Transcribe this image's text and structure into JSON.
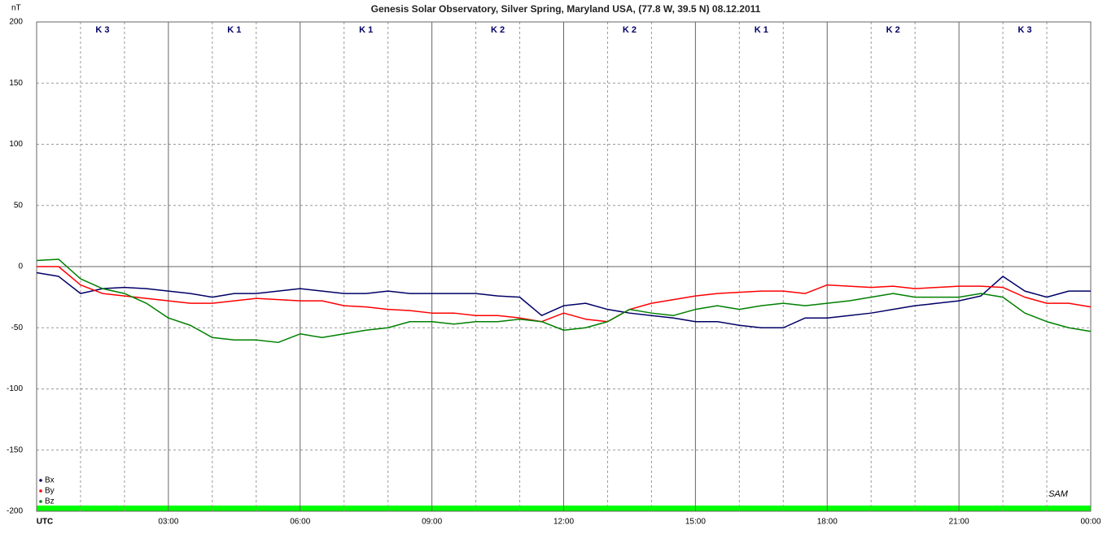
{
  "chart_data": {
    "type": "line",
    "title": "Genesis Solar Observatory, Silver Spring, Maryland USA, (77.8 W, 39.5 N)  08.12.2011",
    "y_label": "nT",
    "k_index": [
      "K 3",
      "K 1",
      "K 1",
      "K 2",
      "K 2",
      "K 1",
      "K 2",
      "K 3"
    ],
    "logo": "SAM",
    "x": [
      0,
      0.5,
      1,
      1.5,
      2,
      2.5,
      3,
      3.5,
      4,
      4.5,
      5,
      5.5,
      6,
      6.5,
      7,
      7.5,
      8,
      8.5,
      9,
      9.5,
      10,
      10.5,
      11,
      11.5,
      12,
      12.5,
      13,
      13.5,
      14,
      14.5,
      15,
      15.5,
      16,
      16.5,
      17,
      17.5,
      18,
      18.5,
      19,
      19.5,
      20,
      20.5,
      21,
      21.5,
      22,
      22.5,
      23,
      23.5,
      24
    ],
    "series": [
      {
        "name": "Bx",
        "color": "#000066",
        "values": [
          -5,
          -8,
          -22,
          -18,
          -17,
          -18,
          -20,
          -22,
          -25,
          -22,
          -22,
          -20,
          -18,
          -20,
          -22,
          -22,
          -20,
          -22,
          -22,
          -22,
          -22,
          -24,
          -25,
          -40,
          -32,
          -30,
          -35,
          -38,
          -40,
          -42,
          -45,
          -45,
          -48,
          -50,
          -50,
          -42,
          -42,
          -40,
          -38,
          -35,
          -32,
          -30,
          -28,
          -24,
          -8,
          -20,
          -25,
          -20,
          -20
        ]
      },
      {
        "name": "By",
        "color": "#ff0000",
        "values": [
          0,
          0,
          -15,
          -22,
          -24,
          -26,
          -28,
          -30,
          -30,
          -28,
          -26,
          -27,
          -28,
          -28,
          -32,
          -33,
          -35,
          -36,
          -38,
          -38,
          -40,
          -40,
          -42,
          -45,
          -38,
          -43,
          -45,
          -35,
          -30,
          -27,
          -24,
          -22,
          -21,
          -20,
          -20,
          -22,
          -15,
          -16,
          -17,
          -16,
          -18,
          -17,
          -16,
          -16,
          -17,
          -25,
          -30,
          -30,
          -33
        ]
      },
      {
        "name": "Bz",
        "color": "#008000",
        "values": [
          5,
          6,
          -10,
          -18,
          -22,
          -30,
          -42,
          -48,
          -58,
          -60,
          -60,
          -62,
          -55,
          -58,
          -55,
          -52,
          -50,
          -45,
          -45,
          -47,
          -45,
          -45,
          -43,
          -45,
          -52,
          -50,
          -45,
          -35,
          -38,
          -40,
          -35,
          -32,
          -35,
          -32,
          -30,
          -32,
          -30,
          -28,
          -25,
          -22,
          -25,
          -25,
          -25,
          -22,
          -25,
          -38,
          -45,
          -50,
          -53
        ]
      }
    ],
    "xlim": [
      0,
      24
    ],
    "xticks": [
      {
        "value": 0,
        "label": "UTC"
      },
      {
        "value": 3,
        "label": "03:00"
      },
      {
        "value": 6,
        "label": "06:00"
      },
      {
        "value": 9,
        "label": "09:00"
      },
      {
        "value": 12,
        "label": "12:00"
      },
      {
        "value": 15,
        "label": "15:00"
      },
      {
        "value": 18,
        "label": "18:00"
      },
      {
        "value": 21,
        "label": "21:00"
      },
      {
        "value": 24,
        "label": "00:00"
      }
    ],
    "x_minor_grid": [
      1,
      2,
      4,
      5,
      7,
      8,
      10,
      11,
      13,
      14,
      16,
      17,
      19,
      20,
      22,
      23
    ],
    "ylim": [
      -200,
      200
    ],
    "yticks": [
      -200,
      -150,
      -100,
      -50,
      0,
      50,
      100,
      150,
      200
    ],
    "grid": true
  }
}
